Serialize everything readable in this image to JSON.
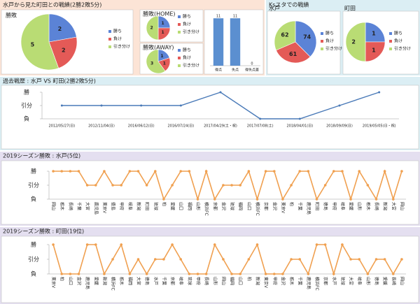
{
  "sections": [
    "水戸から見た町田との戦績(2勝2敗5分)",
    "Ksスタでの戦績",
    "過去戦歴 : 水戸 VS 町田(2勝2敗5分)",
    "2019シーズン勝敗 : 水戸(5位)",
    "2019シーズン勝敗 : 町田(19位)"
  ],
  "chart_data": [
    {
      "type": "pie",
      "title": "勝敗",
      "categories": [
        "勝ち",
        "負け",
        "引き分け"
      ],
      "values": [
        2,
        2,
        5
      ],
      "colors": [
        "#5b83d6",
        "#e45a57",
        "#b9dc74"
      ]
    },
    {
      "type": "pie",
      "title": "勝敗(HOME)",
      "categories": [
        "勝ち",
        "負け",
        "引き分け"
      ],
      "values": [
        1,
        1,
        2
      ],
      "colors": [
        "#5b83d6",
        "#e45a57",
        "#b9dc74"
      ]
    },
    {
      "type": "pie",
      "title": "勝敗(AWAY)",
      "categories": [
        "勝ち",
        "負け",
        "引き分け"
      ],
      "values": [
        1,
        1,
        3
      ],
      "colors": [
        "#5b83d6",
        "#e45a57",
        "#b9dc74"
      ]
    },
    {
      "type": "bar",
      "categories": [
        "得点",
        "失点",
        "得失点差"
      ],
      "values": [
        11,
        11,
        0
      ],
      "color": "#5b8fd0",
      "ylim": [
        0,
        12
      ]
    },
    {
      "type": "pie",
      "title": "水戸",
      "categories": [
        "勝ち",
        "負け",
        "引き分け"
      ],
      "values": [
        74,
        61,
        62
      ],
      "colors": [
        "#5b83d6",
        "#e45a57",
        "#b9dc74"
      ]
    },
    {
      "type": "pie",
      "title": "町田",
      "categories": [
        "勝ち",
        "負け",
        "引き分け"
      ],
      "values": [
        1,
        1,
        2
      ],
      "colors": [
        "#5b83d6",
        "#e45a57",
        "#b9dc74"
      ]
    },
    {
      "type": "line",
      "categories": [
        "2012/05/27(日)",
        "2012/11/04(日)",
        "2016/06/12(日)",
        "2016/07/24(日)",
        "2017/04/29(土・祝)",
        "2017/07/08(土)",
        "2018/04/01(日)",
        "2018/09/09(日)",
        "2019/05/05(日・祝)"
      ],
      "values": [
        0,
        0,
        0,
        0,
        1,
        -1,
        -1,
        0,
        1
      ],
      "color": "#4a7ab8",
      "ylim": [
        -1,
        1
      ],
      "yticks": [
        {
          "value": 1,
          "label": "勝"
        },
        {
          "value": 0,
          "label": "引分"
        },
        {
          "value": -1,
          "label": "負"
        }
      ]
    },
    {
      "type": "line",
      "categories": [
        "岡山",
        "栃木",
        "長崎",
        "千葉",
        "大宮",
        "鹿児島",
        "東京V",
        "徳島",
        "甲府",
        "岐阜",
        "新潟",
        "町田",
        "琉球",
        "柏",
        "愛媛",
        "山口",
        "福岡",
        "山形",
        "横浜FC",
        "京都",
        "金沢",
        "琉球",
        "福岡",
        "山口",
        "横浜FC",
        "京都",
        "金沢",
        "東京V",
        "柏",
        "千葉",
        "鹿児島",
        "町田",
        "徳島",
        "甲府",
        "岐阜",
        "愛媛",
        "山形",
        "栃木",
        "長崎",
        "新潟",
        "大宮",
        "岡山"
      ],
      "values": [
        1,
        1,
        1,
        1,
        0,
        0,
        1,
        0,
        0,
        1,
        1,
        0,
        1,
        -1,
        0,
        1,
        1,
        -1,
        1,
        -1,
        0,
        0,
        0,
        1,
        -1,
        1,
        1,
        -1,
        0,
        1,
        1,
        -1,
        0,
        1,
        1,
        -1,
        1,
        0,
        -1,
        1,
        -1,
        1
      ],
      "color": "#f0a050",
      "ylim": [
        -1,
        1
      ],
      "yticks": [
        {
          "value": 1,
          "label": "勝"
        },
        {
          "value": 0,
          "label": "引分"
        },
        {
          "value": -1,
          "label": "負"
        }
      ]
    },
    {
      "type": "line",
      "categories": [
        "東京V",
        "柏",
        "山口",
        "金沢",
        "鹿児島",
        "愛媛",
        "新潟",
        "横浜FC",
        "栃木",
        "福岡",
        "大宮",
        "徳島",
        "水戸",
        "千葉",
        "京都",
        "岐阜",
        "琉球",
        "甲府",
        "長崎",
        "山形",
        "岡山",
        "福岡",
        "山口",
        "柏",
        "新潟",
        "東京V",
        "甲府",
        "金沢",
        "栃木",
        "千葉",
        "鹿児島",
        "横浜FC",
        "京都",
        "水戸",
        "琉球",
        "大宮",
        "岐阜",
        "山形",
        "徳島",
        "愛媛",
        "長崎",
        "岡山"
      ],
      "values": [
        1,
        -1,
        -1,
        -1,
        1,
        1,
        -1,
        0,
        1,
        -1,
        0,
        -1,
        0,
        0,
        1,
        0,
        -1,
        -1,
        -1,
        1,
        0,
        -1,
        -1,
        0,
        1,
        -1,
        -1,
        -1,
        0,
        0,
        -1,
        1,
        1,
        -1,
        1,
        0,
        0,
        -1,
        0,
        0,
        -1,
        0
      ],
      "color": "#f0a050",
      "ylim": [
        -1,
        1
      ],
      "yticks": [
        {
          "value": 1,
          "label": "勝"
        },
        {
          "value": 0,
          "label": "引分"
        },
        {
          "value": -1,
          "label": "負"
        }
      ]
    }
  ]
}
